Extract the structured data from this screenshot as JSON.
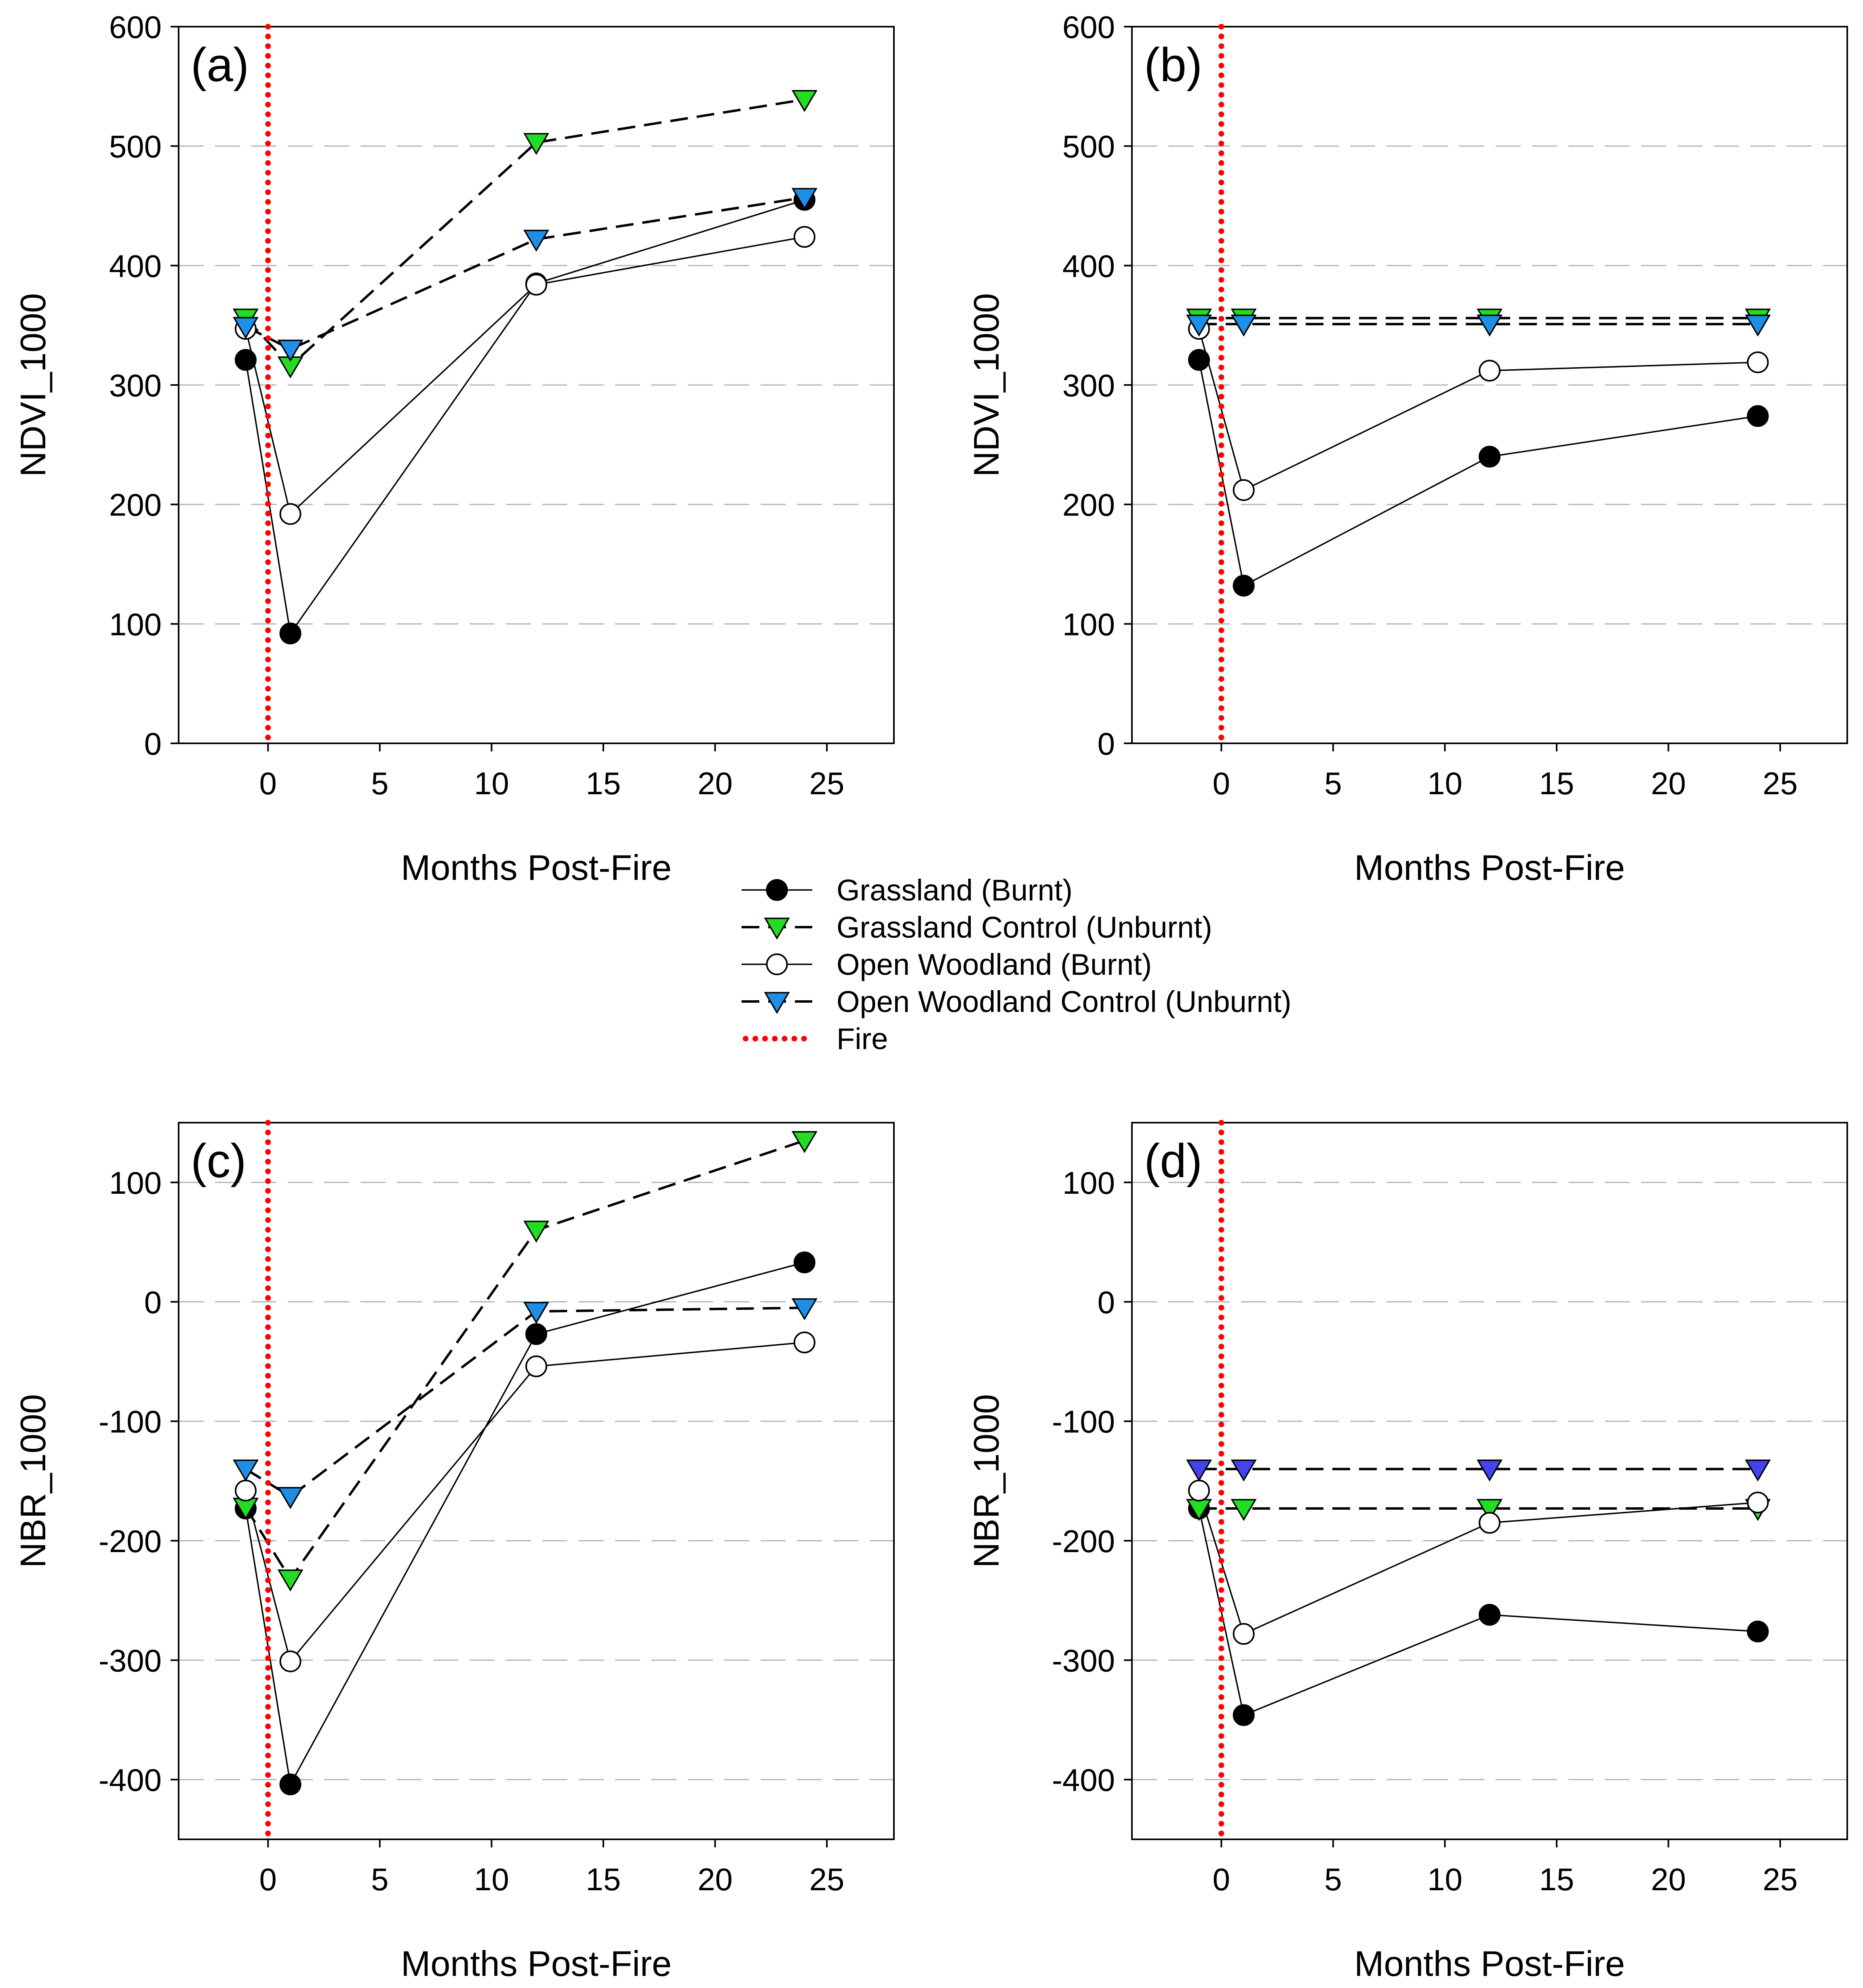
{
  "figure": {
    "legend": {
      "entries": [
        {
          "key": "gb",
          "label": "Grassland (Burnt)"
        },
        {
          "key": "gc",
          "label": "Grassland Control (Unburnt)"
        },
        {
          "key": "wb",
          "label": "Open Woodland (Burnt)"
        },
        {
          "key": "wc",
          "label": "Open Woodland Control (Unburnt)"
        },
        {
          "key": "fire",
          "label": "Fire"
        }
      ]
    }
  },
  "colors": {
    "grid": "#b4b4b4",
    "fire": "#ff0000",
    "green_marker": "#22dd22",
    "blue_marker": "#1e8fe6",
    "purple_marker": "#4444ee",
    "filled_marker": "#000000",
    "open_marker": "#ffffff"
  },
  "chart_data": [
    {
      "id": "a",
      "type": "line",
      "panel_label": "(a)",
      "xlabel": "Months Post-Fire",
      "ylabel": "NDVI_1000",
      "xlim": [
        -4,
        28
      ],
      "ylim": [
        0,
        600
      ],
      "xticks": [
        0,
        5,
        10,
        15,
        20,
        25
      ],
      "yticks": [
        0,
        100,
        200,
        300,
        400,
        500,
        600
      ],
      "grid": "horizontal dashed",
      "fire_x": 0,
      "x": [
        -1,
        1,
        12,
        24
      ],
      "series": [
        {
          "key": "gb",
          "name": "Grassland (Burnt)",
          "values": [
            321,
            92,
            385,
            455
          ],
          "marker": "circle",
          "fill": "black",
          "line": "solid"
        },
        {
          "key": "gc",
          "name": "Grassland Control (Unburnt)",
          "values": [
            356,
            316,
            503,
            539
          ],
          "marker": "triangle-down",
          "fill": "green",
          "line": "dashed"
        },
        {
          "key": "wb",
          "name": "Open Woodland (Burnt)",
          "values": [
            347,
            192,
            384,
            424
          ],
          "marker": "circle",
          "fill": "white",
          "line": "solid"
        },
        {
          "key": "wc",
          "name": "Open Woodland Control (Unburnt)",
          "values": [
            349,
            330,
            422,
            457
          ],
          "marker": "triangle-down",
          "fill": "blue",
          "line": "dashed"
        }
      ]
    },
    {
      "id": "b",
      "type": "line",
      "panel_label": "(b)",
      "xlabel": "Months Post-Fire",
      "ylabel": "NDVI_1000",
      "xlim": [
        -4,
        28
      ],
      "ylim": [
        0,
        600
      ],
      "xticks": [
        0,
        5,
        10,
        15,
        20,
        25
      ],
      "yticks": [
        0,
        100,
        200,
        300,
        400,
        500,
        600
      ],
      "grid": "horizontal dashed",
      "fire_x": 0,
      "x": [
        -1,
        1,
        12,
        24
      ],
      "series": [
        {
          "key": "gb",
          "name": "Grassland (Burnt)",
          "values": [
            321,
            132,
            240,
            274
          ],
          "marker": "circle",
          "fill": "black",
          "line": "solid"
        },
        {
          "key": "gc",
          "name": "Grassland Control (Unburnt)",
          "values": [
            356,
            356,
            356,
            356
          ],
          "marker": "triangle-down",
          "fill": "green",
          "line": "dashed"
        },
        {
          "key": "wb",
          "name": "Open Woodland (Burnt)",
          "values": [
            347,
            212,
            312,
            319
          ],
          "marker": "circle",
          "fill": "white",
          "line": "solid"
        },
        {
          "key": "wc",
          "name": "Open Woodland Control (Unburnt)",
          "values": [
            351,
            351,
            351,
            351
          ],
          "marker": "triangle-down",
          "fill": "blue",
          "line": "dashed"
        }
      ]
    },
    {
      "id": "c",
      "type": "line",
      "panel_label": "(c)",
      "xlabel": "Months Post-Fire",
      "ylabel": "NBR_1000",
      "xlim": [
        -4,
        28
      ],
      "ylim": [
        -450,
        150
      ],
      "xticks": [
        0,
        5,
        10,
        15,
        20,
        25
      ],
      "yticks": [
        -400,
        -300,
        -200,
        -100,
        0,
        100
      ],
      "grid": "horizontal dashed",
      "fire_x": 0,
      "x": [
        -1,
        1,
        12,
        24
      ],
      "series": [
        {
          "key": "gb",
          "name": "Grassland (Burnt)",
          "values": [
            -173,
            -404,
            -27,
            33
          ],
          "marker": "circle",
          "fill": "black",
          "line": "solid"
        },
        {
          "key": "gc",
          "name": "Grassland Control (Unburnt)",
          "values": [
            -172,
            -232,
            60,
            135
          ],
          "marker": "triangle-down",
          "fill": "green",
          "line": "dashed"
        },
        {
          "key": "wb",
          "name": "Open Woodland (Burnt)",
          "values": [
            -158,
            -301,
            -54,
            -34
          ],
          "marker": "circle",
          "fill": "white",
          "line": "solid"
        },
        {
          "key": "wc",
          "name": "Open Woodland Control (Unburnt)",
          "values": [
            -140,
            -163,
            -8,
            -5
          ],
          "marker": "triangle-down",
          "fill": "blue",
          "line": "dashed"
        }
      ]
    },
    {
      "id": "d",
      "type": "line",
      "panel_label": "(d)",
      "xlabel": "Months Post-Fire",
      "ylabel": "NBR_1000",
      "xlim": [
        -4,
        28
      ],
      "ylim": [
        -450,
        150
      ],
      "xticks": [
        0,
        5,
        10,
        15,
        20,
        25
      ],
      "yticks": [
        -400,
        -300,
        -200,
        -100,
        0,
        100
      ],
      "grid": "horizontal dashed",
      "fire_x": 0,
      "x": [
        -1,
        1,
        12,
        24
      ],
      "series": [
        {
          "key": "gb",
          "name": "Grassland (Burnt)",
          "values": [
            -173,
            -346,
            -262,
            -276
          ],
          "marker": "circle",
          "fill": "black",
          "line": "solid"
        },
        {
          "key": "gc",
          "name": "Grassland Control (Unburnt)",
          "values": [
            -173,
            -173,
            -173,
            -173
          ],
          "marker": "triangle-down",
          "fill": "green",
          "line": "dashed"
        },
        {
          "key": "wb",
          "name": "Open Woodland (Burnt)",
          "values": [
            -158,
            -278,
            -185,
            -168
          ],
          "marker": "circle",
          "fill": "white",
          "line": "solid"
        },
        {
          "key": "wc",
          "name": "Open Woodland Control (Unburnt)",
          "values": [
            -140,
            -140,
            -140,
            -140
          ],
          "marker": "triangle-down",
          "fill": "purple",
          "line": "dashed"
        }
      ]
    }
  ]
}
